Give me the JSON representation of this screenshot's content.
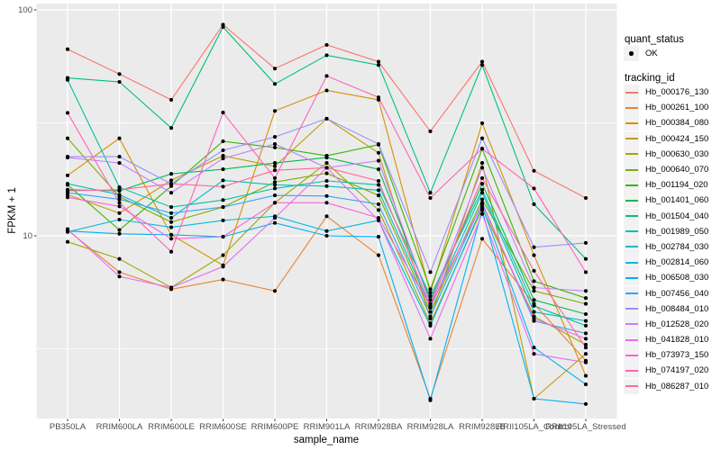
{
  "axes": {
    "x_title": "sample_name",
    "y_title": "FPKM + 1"
  },
  "legend": {
    "quant_title": "quant_status",
    "ok_label": "OK",
    "tracking_title": "tracking_id"
  },
  "style": {
    "figure_bg": "#FFFFFF",
    "panel_bg": "#EBEBEB",
    "grid_major": "#FFFFFF",
    "grid_minor": "#FFFFFF",
    "tick_color": "#333333",
    "tick_label_color": "#4D4D4D",
    "point_color": "#000000",
    "legend_key_bg": "#F2F2F2"
  },
  "chart_data": {
    "type": "line",
    "xlabel": "sample_name",
    "ylabel": "FPKM + 1",
    "y_scale": "log10",
    "grid": true,
    "legend_position": "right",
    "y_ticks": [
      100,
      10
    ],
    "y_tick_render": [
      10,
      100
    ],
    "y_minor_ticks": [
      3.162,
      31.62
    ],
    "ylim": [
      1.55,
      106
    ],
    "point_color": "#000000",
    "x_categories": [
      "PB350LA",
      "RRIM600LA",
      "RRIM600LE",
      "RRIM600SE",
      "RRIM600PE",
      "RRIM901LA",
      "RRIM928BA",
      "RRIM928LA",
      "RRIM928LB",
      "RRII105LA_Control",
      "RRII105LA_Stressed"
    ],
    "quant_status_values": [
      "OK"
    ],
    "series": [
      {
        "name": "Hb_000176_130",
        "color": "#F8766D",
        "values": [
          67,
          52,
          40,
          86,
          55,
          70,
          59,
          29,
          59,
          19.4,
          14.7
        ]
      },
      {
        "name": "Hb_000261_100",
        "color": "#EA8331",
        "values": [
          10.6,
          6.9,
          5.8,
          6.4,
          5.7,
          12.2,
          8.2,
          1.9,
          9.7,
          5.0,
          2.8
        ]
      },
      {
        "name": "Hb_000384_080",
        "color": "#D89000",
        "values": [
          18.5,
          27,
          10.1,
          7.4,
          35.7,
          44,
          40,
          5.6,
          31.5,
          8.2,
          2.4
        ]
      },
      {
        "name": "Hb_000424_150",
        "color": "#C09B00",
        "values": [
          15.2,
          12.6,
          17.6,
          22.6,
          20.3,
          33,
          23.3,
          4.3,
          21,
          1.9,
          3.0
        ]
      },
      {
        "name": "Hb_000630_030",
        "color": "#A3A500",
        "values": [
          9.4,
          7.9,
          5.9,
          8.2,
          14.0,
          21.0,
          13.0,
          4.1,
          13.2,
          4.4,
          3.3
        ]
      },
      {
        "name": "Hb_000640_070",
        "color": "#7CAE00",
        "values": [
          27,
          14.9,
          11.5,
          13.4,
          17.3,
          18.9,
          15.1,
          4.6,
          14.5,
          5.7,
          5.0
        ]
      },
      {
        "name": "Hb_001194_020",
        "color": "#39B600",
        "values": [
          16.8,
          10.6,
          16.6,
          26.2,
          24.6,
          22.6,
          25.3,
          5.8,
          24.3,
          6.3,
          5.3
        ]
      },
      {
        "name": "Hb_001401_060",
        "color": "#00BB4E",
        "values": [
          16.0,
          15.8,
          18.8,
          19.7,
          21.0,
          22.2,
          19.7,
          5.2,
          17.0,
          5.2,
          4.5
        ]
      },
      {
        "name": "Hb_001504_040",
        "color": "#00BF7D",
        "values": [
          50,
          48,
          30,
          84,
          47,
          63,
          57,
          15.5,
          57,
          13.8,
          7.9
        ]
      },
      {
        "name": "Hb_001989_050",
        "color": "#00C1A3",
        "values": [
          49,
          16.4,
          13.4,
          14.4,
          16.2,
          17.5,
          16.8,
          5.4,
          16.0,
          4.9,
          4.0
        ]
      },
      {
        "name": "Hb_002784_030",
        "color": "#00BFC4",
        "values": [
          17.0,
          15.2,
          12.0,
          17.6,
          16.8,
          16.6,
          15.9,
          4.8,
          15.5,
          4.6,
          4.2
        ]
      },
      {
        "name": "Hb_002814_060",
        "color": "#00BAE0",
        "values": [
          10.4,
          11.8,
          10.9,
          11.7,
          12.2,
          10.5,
          11.7,
          4.0,
          13.5,
          3.2,
          2.2
        ]
      },
      {
        "name": "Hb_006508_030",
        "color": "#00B0F6",
        "values": [
          10.5,
          10.2,
          10.1,
          9.9,
          11.4,
          10.0,
          9.9,
          1.87,
          13.0,
          1.9,
          1.8
        ]
      },
      {
        "name": "Hb_007456_040",
        "color": "#35A2FF",
        "values": [
          15.5,
          14.5,
          12.6,
          13.4,
          15.1,
          15.0,
          13.8,
          4.4,
          14.0,
          4.2,
          3.7
        ]
      },
      {
        "name": "Hb_008484_010",
        "color": "#9590FF",
        "values": [
          22.4,
          22.4,
          17.0,
          23.9,
          27.4,
          33,
          25.5,
          6.9,
          27,
          8.9,
          9.3
        ]
      },
      {
        "name": "Hb_012528_020",
        "color": "#C77CFF",
        "values": [
          22.2,
          21,
          15.5,
          22.0,
          25.5,
          20.0,
          21.5,
          5.0,
          20,
          5.9,
          5.7
        ]
      },
      {
        "name": "Hb_041828_010",
        "color": "#E76BF3",
        "values": [
          10.7,
          6.6,
          5.9,
          7.3,
          12.0,
          20.0,
          11.7,
          3.5,
          12.5,
          3.0,
          2.75
        ]
      },
      {
        "name": "Hb_073973_150",
        "color": "#FA62DB",
        "values": [
          14.8,
          13.5,
          9.7,
          9.9,
          14.0,
          14.0,
          12.0,
          4.9,
          13.8,
          4.3,
          3.5
        ]
      },
      {
        "name": "Hb_074197_020",
        "color": "#FF62BC",
        "values": [
          35,
          14.0,
          8.5,
          35.1,
          18.0,
          51,
          41,
          14.7,
          24.3,
          16.2,
          6.9
        ]
      },
      {
        "name": "Hb_086287_010",
        "color": "#FF6A98",
        "values": [
          15.8,
          16.0,
          17.0,
          16.5,
          19.5,
          20.0,
          17.5,
          4.9,
          18,
          7.0,
          3.2
        ]
      }
    ]
  }
}
